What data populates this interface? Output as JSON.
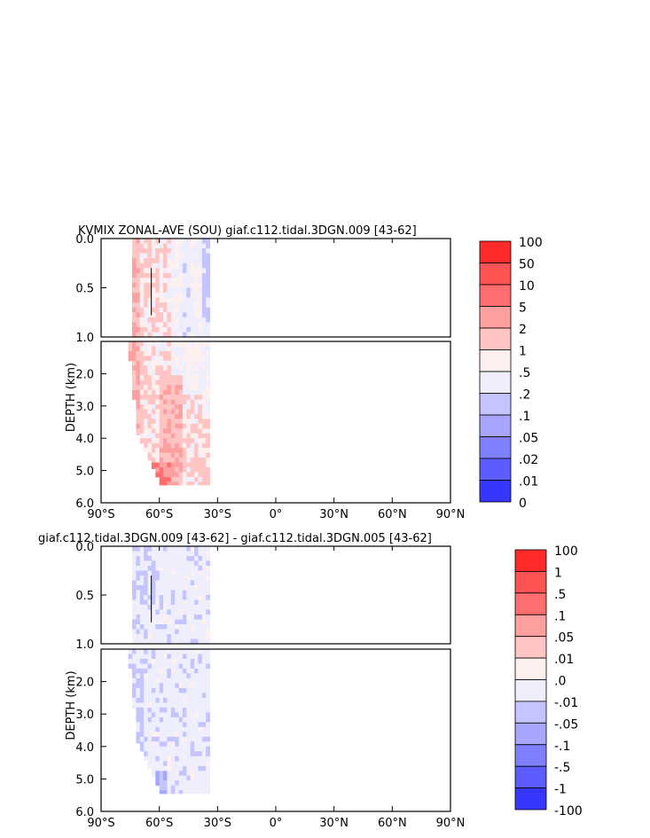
{
  "chart_data": [
    {
      "type": "heatmap",
      "title": "KVMIX ZONAL-AVE (SOU) giaf.c112.tidal.3DGN.009 [43-62]",
      "ylabel": "DEPTH (km)",
      "xticks": [
        "90°S",
        "60°S",
        "30°S",
        "0°",
        "30°N",
        "60°N",
        "90°N"
      ],
      "xlim": [
        -90,
        90
      ],
      "upper_panel": {
        "ylim": [
          1.0,
          0.0
        ],
        "yticks": [
          "0.0",
          "0.5",
          "1.0"
        ]
      },
      "lower_panel": {
        "ylim": [
          6.0,
          1.0
        ],
        "yticks": [
          "2.0",
          "3.0",
          "4.0",
          "5.0",
          "6.0"
        ]
      },
      "colorbar": {
        "levels": [
          "100",
          "50",
          "10",
          "5",
          "2",
          "1",
          ".5",
          ".2",
          ".1",
          ".05",
          ".02",
          ".01",
          "0"
        ],
        "colors": [
          "#ff2a2a",
          "#ff5252",
          "#ff6e6e",
          "#ffa0a0",
          "#ffc4c4",
          "#fff0f0",
          "#eeeefc",
          "#c4c4ff",
          "#a6a6ff",
          "#8080ff",
          "#5c5cff",
          "#3636ff"
        ]
      },
      "field": {
        "lat_min": -76,
        "lat_max": -34,
        "character": "mostly light red (1-5), stronger red near the bottom south of 50°S, light blue (.2-.5) patches in the upper ocean north of 50°S"
      }
    },
    {
      "type": "heatmap",
      "title": "giaf.c112.tidal.3DGN.009 [43-62] - giaf.c112.tidal.3DGN.005 [43-62]",
      "ylabel": "DEPTH (km)",
      "xticks": [
        "90°S",
        "60°S",
        "30°S",
        "0°",
        "30°N",
        "60°N",
        "90°N"
      ],
      "xlim": [
        -90,
        90
      ],
      "upper_panel": {
        "ylim": [
          1.0,
          0.0
        ],
        "yticks": [
          "0.0",
          "0.5",
          "1.0"
        ]
      },
      "lower_panel": {
        "ylim": [
          6.0,
          1.0
        ],
        "yticks": [
          "2.0",
          "3.0",
          "4.0",
          "5.0",
          "6.0"
        ]
      },
      "colorbar": {
        "levels": [
          "100",
          "1",
          ".5",
          ".1",
          ".05",
          ".01",
          ".0",
          "-.01",
          "-.05",
          "-.1",
          "-.5",
          "-1",
          "-100"
        ],
        "colors": [
          "#ff2a2a",
          "#ff5252",
          "#ff6e6e",
          "#ffa0a0",
          "#ffc4c4",
          "#fff0f0",
          "#eeeefc",
          "#c4c4ff",
          "#a6a6ff",
          "#8080ff",
          "#5c5cff",
          "#3636ff"
        ]
      },
      "field": {
        "lat_min": -76,
        "lat_max": -34,
        "character": "mostly near zero (0 to -.01), scattered -.01 to -.1 patches, strongest negative near the bottom around 60°S"
      }
    }
  ]
}
